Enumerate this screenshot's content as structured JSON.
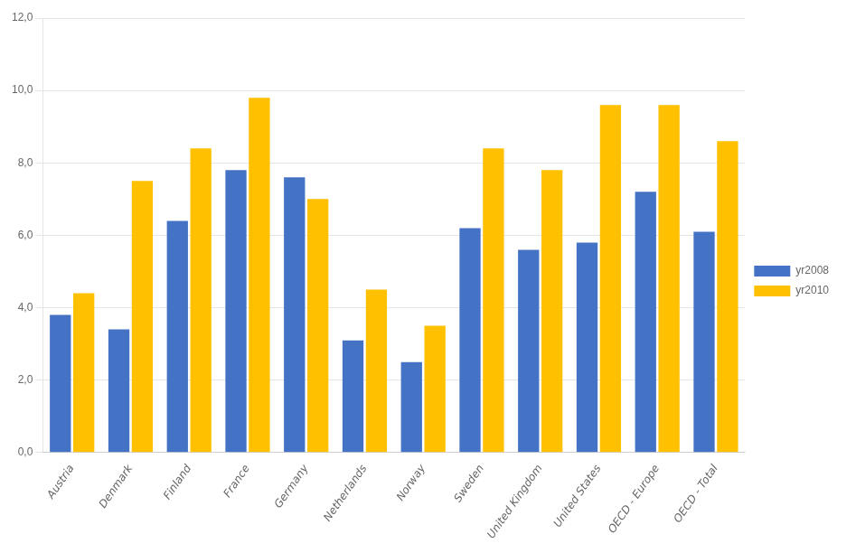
{
  "chart_data": {
    "type": "bar",
    "categories": [
      "Austria",
      "Denmark",
      "Finland",
      "France",
      "Germany",
      "Netherlands",
      "Norway",
      "Sweden",
      "United Kingdom",
      "United States",
      "OECD - Europe",
      "OECD - Total"
    ],
    "series": [
      {
        "name": "yr2008",
        "color": "#4472C4",
        "values": [
          3.8,
          3.4,
          6.4,
          7.8,
          7.6,
          3.1,
          2.5,
          6.2,
          5.6,
          5.8,
          7.2,
          6.1
        ]
      },
      {
        "name": "yr2010",
        "color": "#FFC000",
        "values": [
          4.4,
          7.5,
          8.4,
          9.8,
          7.0,
          4.5,
          3.5,
          8.4,
          7.8,
          9.6,
          9.6,
          8.6
        ]
      }
    ],
    "ylim": [
      0,
      12
    ],
    "yticks": [
      {
        "value": 0,
        "label": "0,0"
      },
      {
        "value": 2,
        "label": "2,0"
      },
      {
        "value": 4,
        "label": "4,0"
      },
      {
        "value": 6,
        "label": "6,0"
      },
      {
        "value": 8,
        "label": "8,0"
      },
      {
        "value": 10,
        "label": "10,0"
      },
      {
        "value": 12,
        "label": "12,0"
      }
    ],
    "grid": true,
    "legend": "right"
  }
}
